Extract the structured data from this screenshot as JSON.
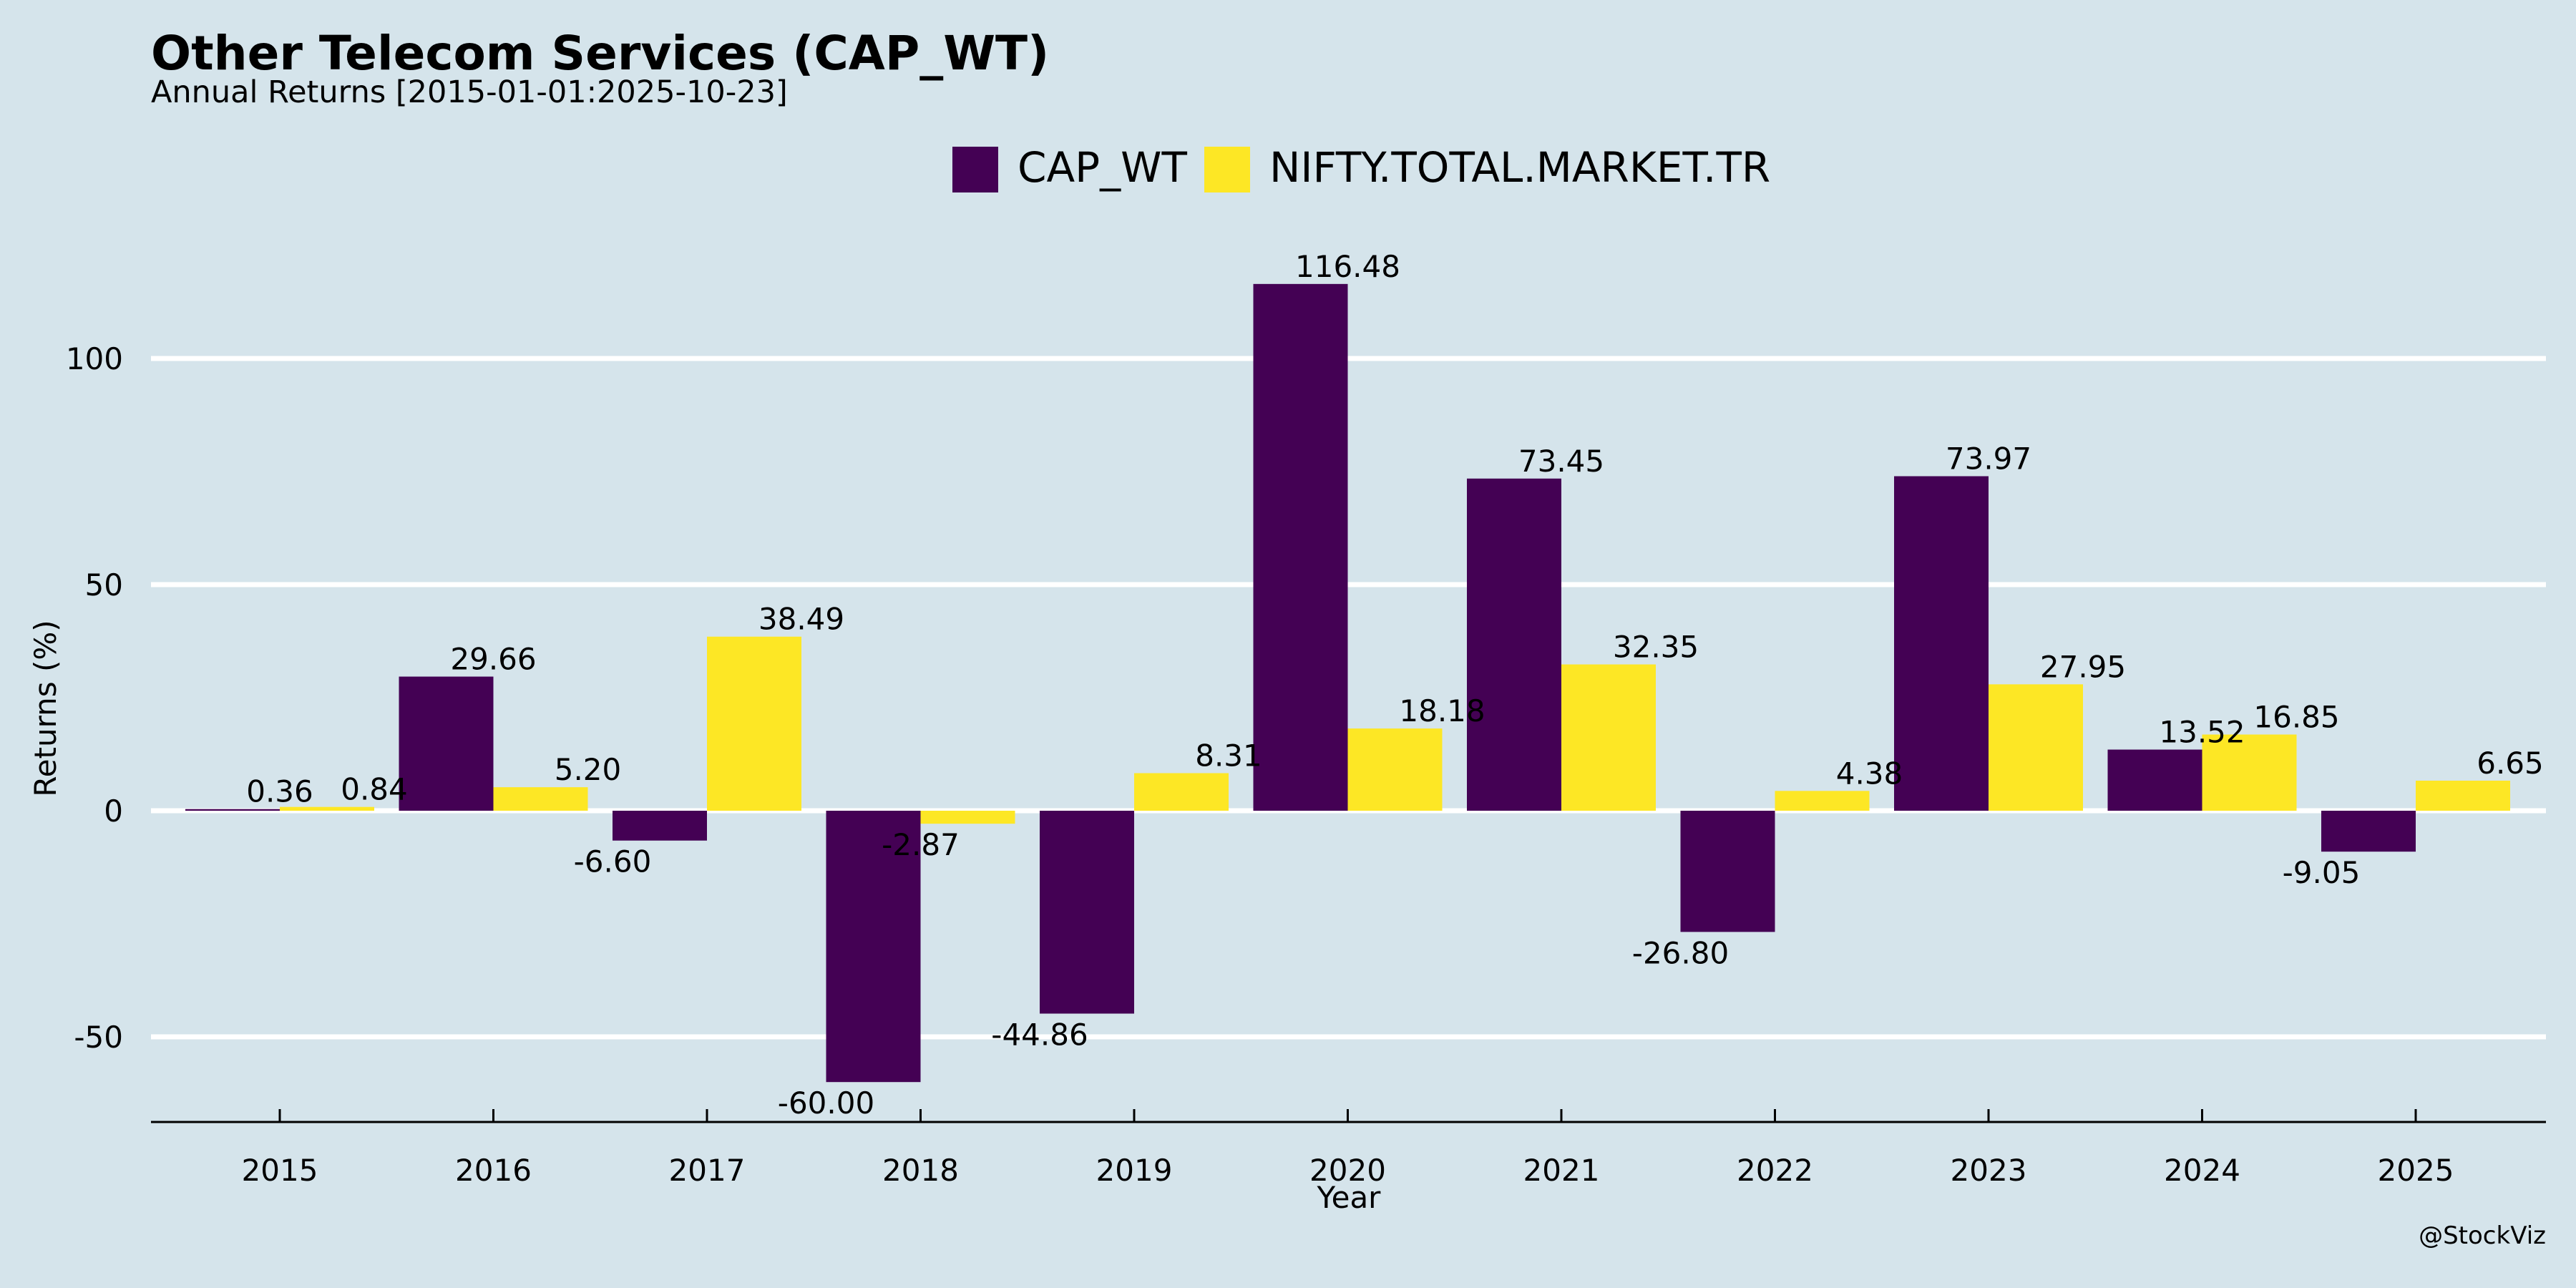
{
  "chart_data": {
    "type": "bar",
    "title": "Other Telecom Services (CAP_WT)",
    "subtitle": "Annual Returns [2015-01-01:2025-10-23]",
    "xlabel": "Year",
    "ylabel": "Returns (%)",
    "categories": [
      "2015",
      "2016",
      "2017",
      "2018",
      "2019",
      "2020",
      "2021",
      "2022",
      "2023",
      "2024",
      "2025"
    ],
    "series": [
      {
        "name": "CAP_WT",
        "color": "#440154",
        "values": [
          0.36,
          29.66,
          -6.6,
          -60.0,
          -44.86,
          116.48,
          73.45,
          -26.8,
          73.97,
          13.52,
          -9.05
        ],
        "labels": [
          "0.36",
          "29.66",
          "-6.60",
          "-60.00",
          "-44.86",
          "116.48",
          "73.45",
          "-26.80",
          "73.97",
          "13.52",
          "-9.05"
        ]
      },
      {
        "name": "NIFTY.TOTAL.MARKET.TR",
        "color": "#fde725",
        "values": [
          0.84,
          5.2,
          38.49,
          -2.87,
          8.31,
          18.18,
          32.35,
          4.38,
          27.95,
          16.85,
          6.65
        ],
        "labels": [
          "0.84",
          "5.20",
          "38.49",
          "-2.87",
          "8.31",
          "18.18",
          "32.35",
          "4.38",
          "27.95",
          "16.85",
          "6.65"
        ]
      }
    ],
    "y_ticks": [
      -50,
      0,
      50,
      100
    ],
    "ylim": [
      -69,
      132
    ],
    "grid": true,
    "legend_position": "top-center",
    "background_color": "#d5e4eb",
    "grid_color": "#ffffff"
  },
  "credit": "@StockViz"
}
